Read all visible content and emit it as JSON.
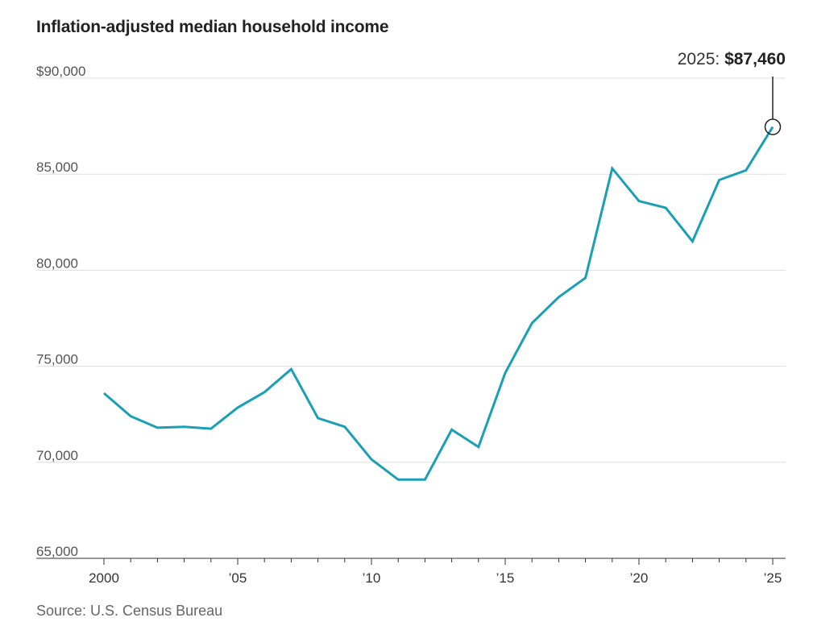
{
  "chart_data": {
    "type": "line",
    "title": "Inflation-adjusted median household income",
    "source": "Source: U.S. Census Bureau",
    "x": [
      2000,
      2001,
      2002,
      2003,
      2004,
      2005,
      2006,
      2007,
      2008,
      2009,
      2010,
      2011,
      2012,
      2013,
      2014,
      2015,
      2016,
      2017,
      2018,
      2019,
      2020,
      2021,
      2022,
      2023,
      2024,
      2025
    ],
    "series": [
      {
        "values": [
          73600,
          72400,
          71800,
          71850,
          71750,
          72850,
          73650,
          74850,
          72300,
          71850,
          70150,
          69100,
          69100,
          71700,
          70800,
          74650,
          77250,
          78600,
          79600,
          85300,
          83600,
          83250,
          81500,
          84700,
          85200,
          87460
        ]
      }
    ],
    "ylim": [
      65000,
      90000
    ],
    "yticks": [
      {
        "value": 90000,
        "label": "$90,000"
      },
      {
        "value": 85000,
        "label": "85,000"
      },
      {
        "value": 80000,
        "label": "80,000"
      },
      {
        "value": 75000,
        "label": "75,000"
      },
      {
        "value": 70000,
        "label": "70,000"
      },
      {
        "value": 65000,
        "label": "65,000"
      }
    ],
    "xticks": [
      {
        "value": 2000,
        "label": "2000"
      },
      {
        "value": 2005,
        "label": "’05"
      },
      {
        "value": 2010,
        "label": "’10"
      },
      {
        "value": 2015,
        "label": "’15"
      },
      {
        "value": 2020,
        "label": "’20"
      },
      {
        "value": 2025,
        "label": "’25"
      }
    ],
    "annotation": {
      "x": 2025,
      "y": 87460,
      "year_label": "2025:",
      "value_label": "$87,460"
    },
    "line_color": "#1a9fb5",
    "grid": true
  }
}
